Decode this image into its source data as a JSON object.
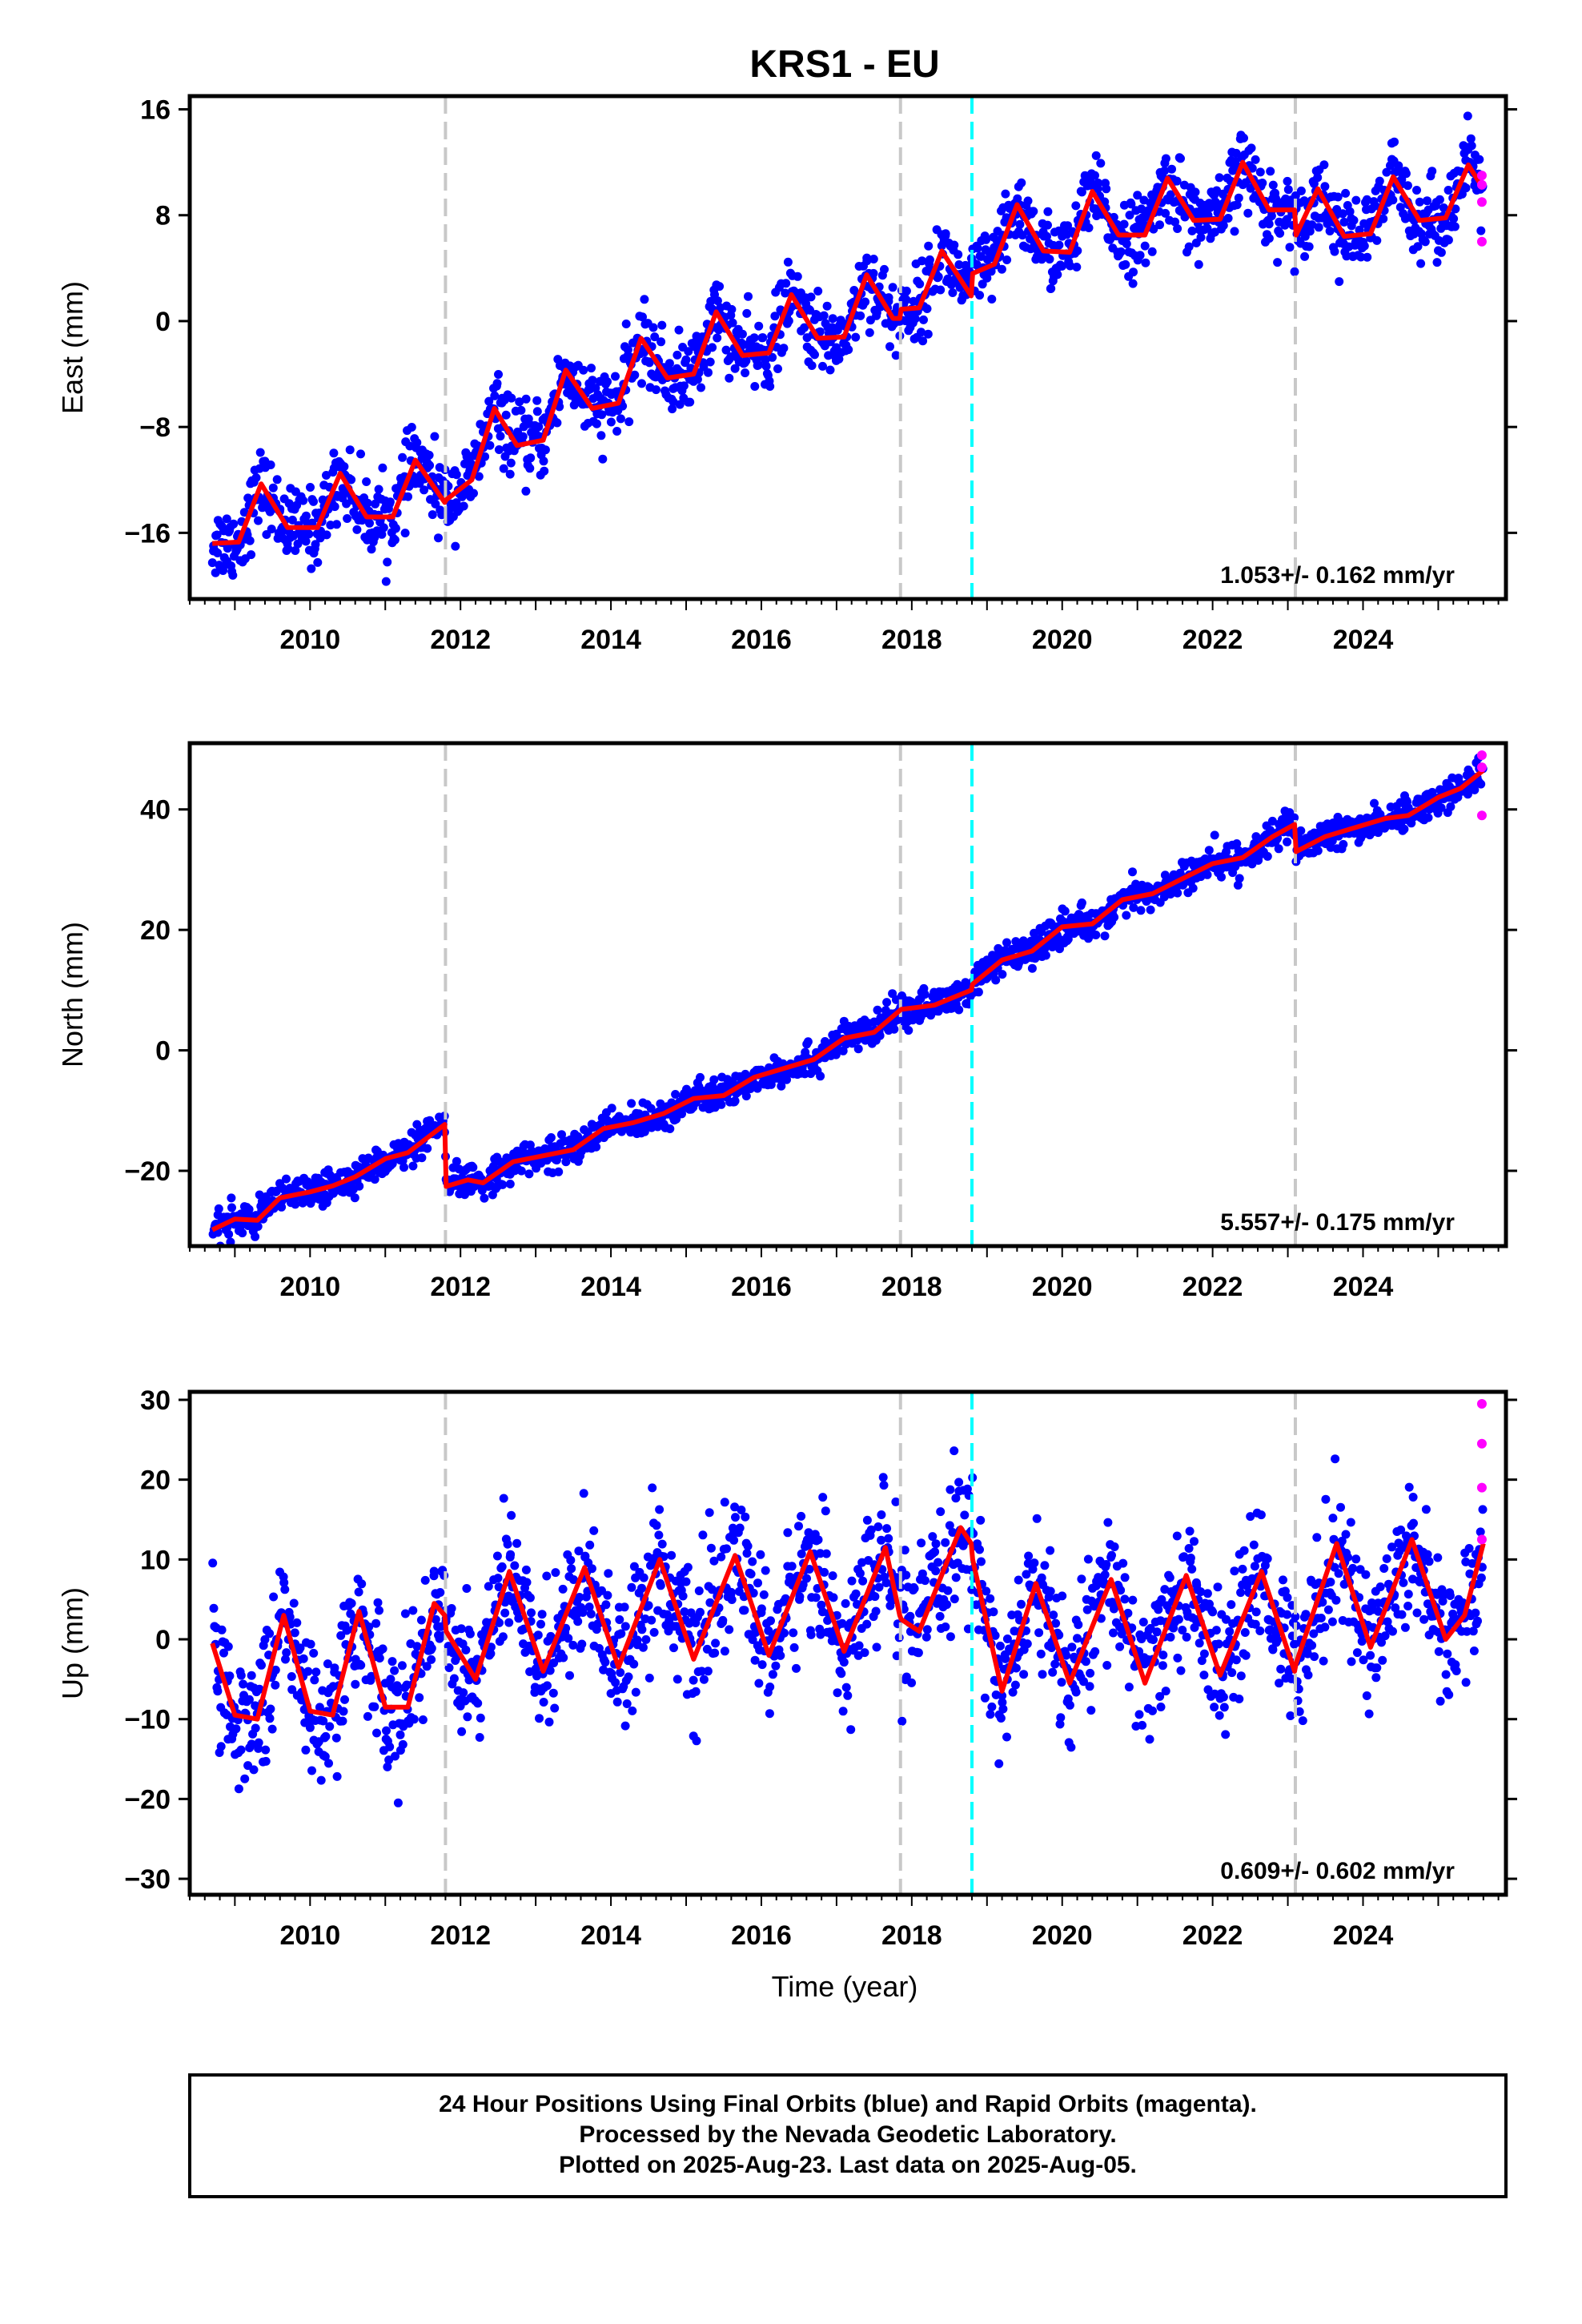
{
  "title": "KRS1 - EU",
  "xlabel": "Time (year)",
  "colors": {
    "final_orbits": "#0000ff",
    "rapid_orbits": "#ff00ff",
    "model": "#ff0000",
    "equipment_change": "#c8c8c8",
    "other_event": "#00ffff"
  },
  "footer": {
    "line1": "24 Hour Positions Using Final Orbits (blue) and Rapid Orbits (magenta).",
    "line2": "Processed by the Nevada Geodetic Laboratory.",
    "line3": "Plotted on 2025-Aug-23. Last data on 2025-Aug-05."
  },
  "chart_data": [
    {
      "type": "scatter",
      "panel": "East",
      "ylabel": "East (mm)",
      "rate_label": "1.053+/- 0.162 mm/yr",
      "xlim": [
        2008.4,
        2025.9
      ],
      "ylim": [
        -21,
        17
      ],
      "yticks": [
        -16,
        -8,
        0,
        8,
        16
      ],
      "xticks": [
        2010,
        2012,
        2014,
        2016,
        2018,
        2020,
        2022,
        2024
      ],
      "vlines_gray": [
        2011.8,
        2017.85,
        2023.1
      ],
      "vlines_cyan": [
        2018.8
      ],
      "model_keypoints": [
        [
          2008.7,
          -16.8
        ],
        [
          2009.05,
          -16.7
        ],
        [
          2009.35,
          -12.3
        ],
        [
          2009.7,
          -15.6
        ],
        [
          2010.1,
          -15.6
        ],
        [
          2010.4,
          -11.5
        ],
        [
          2010.75,
          -14.8
        ],
        [
          2011.1,
          -14.8
        ],
        [
          2011.4,
          -10.5
        ],
        [
          2011.79,
          -13.7
        ],
        [
          2011.81,
          -13.5
        ],
        [
          2012.15,
          -12.0
        ],
        [
          2012.45,
          -6.6
        ],
        [
          2012.75,
          -9.4
        ],
        [
          2013.1,
          -9.0
        ],
        [
          2013.4,
          -3.7
        ],
        [
          2013.75,
          -6.6
        ],
        [
          2014.1,
          -6.2
        ],
        [
          2014.4,
          -1.3
        ],
        [
          2014.75,
          -4.3
        ],
        [
          2015.1,
          -4.0
        ],
        [
          2015.4,
          0.7
        ],
        [
          2015.75,
          -2.6
        ],
        [
          2016.1,
          -2.4
        ],
        [
          2016.4,
          2.0
        ],
        [
          2016.75,
          -1.3
        ],
        [
          2017.1,
          -1.2
        ],
        [
          2017.4,
          3.5
        ],
        [
          2017.75,
          0.2
        ],
        [
          2017.84,
          0.2
        ],
        [
          2017.86,
          0.9
        ],
        [
          2018.1,
          1.0
        ],
        [
          2018.4,
          5.3
        ],
        [
          2018.79,
          1.9
        ],
        [
          2018.81,
          3.6
        ],
        [
          2019.1,
          4.3
        ],
        [
          2019.4,
          8.8
        ],
        [
          2019.75,
          5.3
        ],
        [
          2020.1,
          5.2
        ],
        [
          2020.4,
          9.8
        ],
        [
          2020.75,
          6.5
        ],
        [
          2021.1,
          6.5
        ],
        [
          2021.4,
          10.8
        ],
        [
          2021.75,
          7.6
        ],
        [
          2022.1,
          7.7
        ],
        [
          2022.4,
          12.0
        ],
        [
          2022.75,
          8.4
        ],
        [
          2023.09,
          8.4
        ],
        [
          2023.11,
          6.5
        ],
        [
          2023.4,
          10.0
        ],
        [
          2023.75,
          6.4
        ],
        [
          2024.1,
          6.6
        ],
        [
          2024.4,
          10.9
        ],
        [
          2024.75,
          7.6
        ],
        [
          2025.1,
          7.8
        ],
        [
          2025.4,
          11.8
        ],
        [
          2025.6,
          10.0
        ]
      ],
      "scatter_noise_mm": 1.4,
      "rapid_points": [
        [
          2025.58,
          11.0
        ],
        [
          2025.58,
          10.3
        ],
        [
          2025.58,
          9.0
        ],
        [
          2025.58,
          6.0
        ]
      ]
    },
    {
      "type": "scatter",
      "panel": "North",
      "ylabel": "North (mm)",
      "rate_label": "5.557+/- 0.175 mm/yr",
      "xlim": [
        2008.4,
        2025.9
      ],
      "ylim": [
        -32.5,
        51
      ],
      "yticks": [
        -20,
        0,
        20,
        40
      ],
      "xticks": [
        2010,
        2012,
        2014,
        2016,
        2018,
        2020,
        2022,
        2024
      ],
      "vlines_gray": [
        2011.8,
        2017.85,
        2023.1
      ],
      "vlines_cyan": [
        2018.8
      ],
      "model_keypoints": [
        [
          2008.7,
          -29.8
        ],
        [
          2009.0,
          -28.0
        ],
        [
          2009.3,
          -28.2
        ],
        [
          2009.6,
          -24.5
        ],
        [
          2010.0,
          -23.5
        ],
        [
          2010.3,
          -22.5
        ],
        [
          2010.6,
          -21.0
        ],
        [
          2011.0,
          -18.0
        ],
        [
          2011.3,
          -17.0
        ],
        [
          2011.79,
          -12.3
        ],
        [
          2011.81,
          -22.6
        ],
        [
          2012.1,
          -21.5
        ],
        [
          2012.3,
          -22.0
        ],
        [
          2012.7,
          -18.5
        ],
        [
          2013.1,
          -17.5
        ],
        [
          2013.5,
          -16.5
        ],
        [
          2013.9,
          -13.0
        ],
        [
          2014.3,
          -12.0
        ],
        [
          2014.7,
          -10.5
        ],
        [
          2015.1,
          -8.0
        ],
        [
          2015.5,
          -7.5
        ],
        [
          2015.9,
          -4.5
        ],
        [
          2016.3,
          -3.0
        ],
        [
          2016.7,
          -1.5
        ],
        [
          2017.1,
          2.0
        ],
        [
          2017.5,
          3.0
        ],
        [
          2017.84,
          6.6
        ],
        [
          2017.86,
          6.8
        ],
        [
          2018.3,
          7.5
        ],
        [
          2018.79,
          10.0
        ],
        [
          2018.81,
          11.0
        ],
        [
          2019.2,
          15.0
        ],
        [
          2019.6,
          16.5
        ],
        [
          2020.0,
          20.5
        ],
        [
          2020.4,
          21.0
        ],
        [
          2020.8,
          25.0
        ],
        [
          2021.2,
          26.0
        ],
        [
          2021.6,
          28.5
        ],
        [
          2022.0,
          31.0
        ],
        [
          2022.4,
          32.0
        ],
        [
          2022.8,
          35.5
        ],
        [
          2023.09,
          37.5
        ],
        [
          2023.11,
          33.0
        ],
        [
          2023.5,
          35.5
        ],
        [
          2023.9,
          37.0
        ],
        [
          2024.3,
          38.5
        ],
        [
          2024.6,
          39.0
        ],
        [
          2025.0,
          42.0
        ],
        [
          2025.3,
          43.5
        ],
        [
          2025.6,
          46.5
        ]
      ],
      "scatter_noise_mm": 1.3,
      "rapid_points": [
        [
          2025.58,
          49.0
        ],
        [
          2025.58,
          47.0
        ],
        [
          2025.58,
          39.0
        ]
      ]
    },
    {
      "type": "scatter",
      "panel": "Up",
      "ylabel": "Up (mm)",
      "rate_label": "0.609+/- 0.602 mm/yr",
      "xlim": [
        2008.4,
        2025.9
      ],
      "ylim": [
        -32,
        31
      ],
      "yticks": [
        -30,
        -20,
        -10,
        0,
        10,
        20,
        30
      ],
      "xticks": [
        2010,
        2012,
        2014,
        2016,
        2018,
        2020,
        2022,
        2024
      ],
      "vlines_gray": [
        2011.8,
        2017.85,
        2023.1
      ],
      "vlines_cyan": [
        2018.8
      ],
      "model_keypoints": [
        [
          2008.7,
          -0.5
        ],
        [
          2009.0,
          -9.5
        ],
        [
          2009.3,
          -10.0
        ],
        [
          2009.65,
          3.0
        ],
        [
          2010.0,
          -9.0
        ],
        [
          2010.3,
          -9.5
        ],
        [
          2010.65,
          3.5
        ],
        [
          2011.0,
          -8.5
        ],
        [
          2011.3,
          -8.5
        ],
        [
          2011.65,
          4.5
        ],
        [
          2011.79,
          3.0
        ],
        [
          2011.81,
          1.0
        ],
        [
          2012.2,
          -5.0
        ],
        [
          2012.65,
          8.5
        ],
        [
          2013.1,
          -4.0
        ],
        [
          2013.65,
          9.0
        ],
        [
          2014.1,
          -3.5
        ],
        [
          2014.65,
          10.0
        ],
        [
          2015.1,
          -2.5
        ],
        [
          2015.65,
          10.5
        ],
        [
          2016.1,
          -2.0
        ],
        [
          2016.65,
          11.0
        ],
        [
          2017.1,
          -1.5
        ],
        [
          2017.65,
          11.5
        ],
        [
          2017.84,
          3.0
        ],
        [
          2017.86,
          2.5
        ],
        [
          2018.1,
          1.0
        ],
        [
          2018.65,
          14.0
        ],
        [
          2018.79,
          12.0
        ],
        [
          2018.81,
          10.0
        ],
        [
          2019.2,
          -6.5
        ],
        [
          2019.65,
          7.0
        ],
        [
          2020.1,
          -5.5
        ],
        [
          2020.65,
          7.5
        ],
        [
          2021.1,
          -5.5
        ],
        [
          2021.65,
          8.0
        ],
        [
          2022.1,
          -4.5
        ],
        [
          2022.65,
          8.5
        ],
        [
          2023.09,
          -4.0
        ],
        [
          2023.11,
          -3.0
        ],
        [
          2023.65,
          12.0
        ],
        [
          2024.1,
          -1.0
        ],
        [
          2024.65,
          12.5
        ],
        [
          2025.1,
          0.0
        ],
        [
          2025.35,
          3.0
        ],
        [
          2025.6,
          12.0
        ]
      ],
      "scatter_noise_mm": 4.2,
      "rapid_points": [
        [
          2025.58,
          29.5
        ],
        [
          2025.58,
          24.5
        ],
        [
          2025.58,
          19.0
        ],
        [
          2025.58,
          12.5
        ]
      ]
    }
  ]
}
